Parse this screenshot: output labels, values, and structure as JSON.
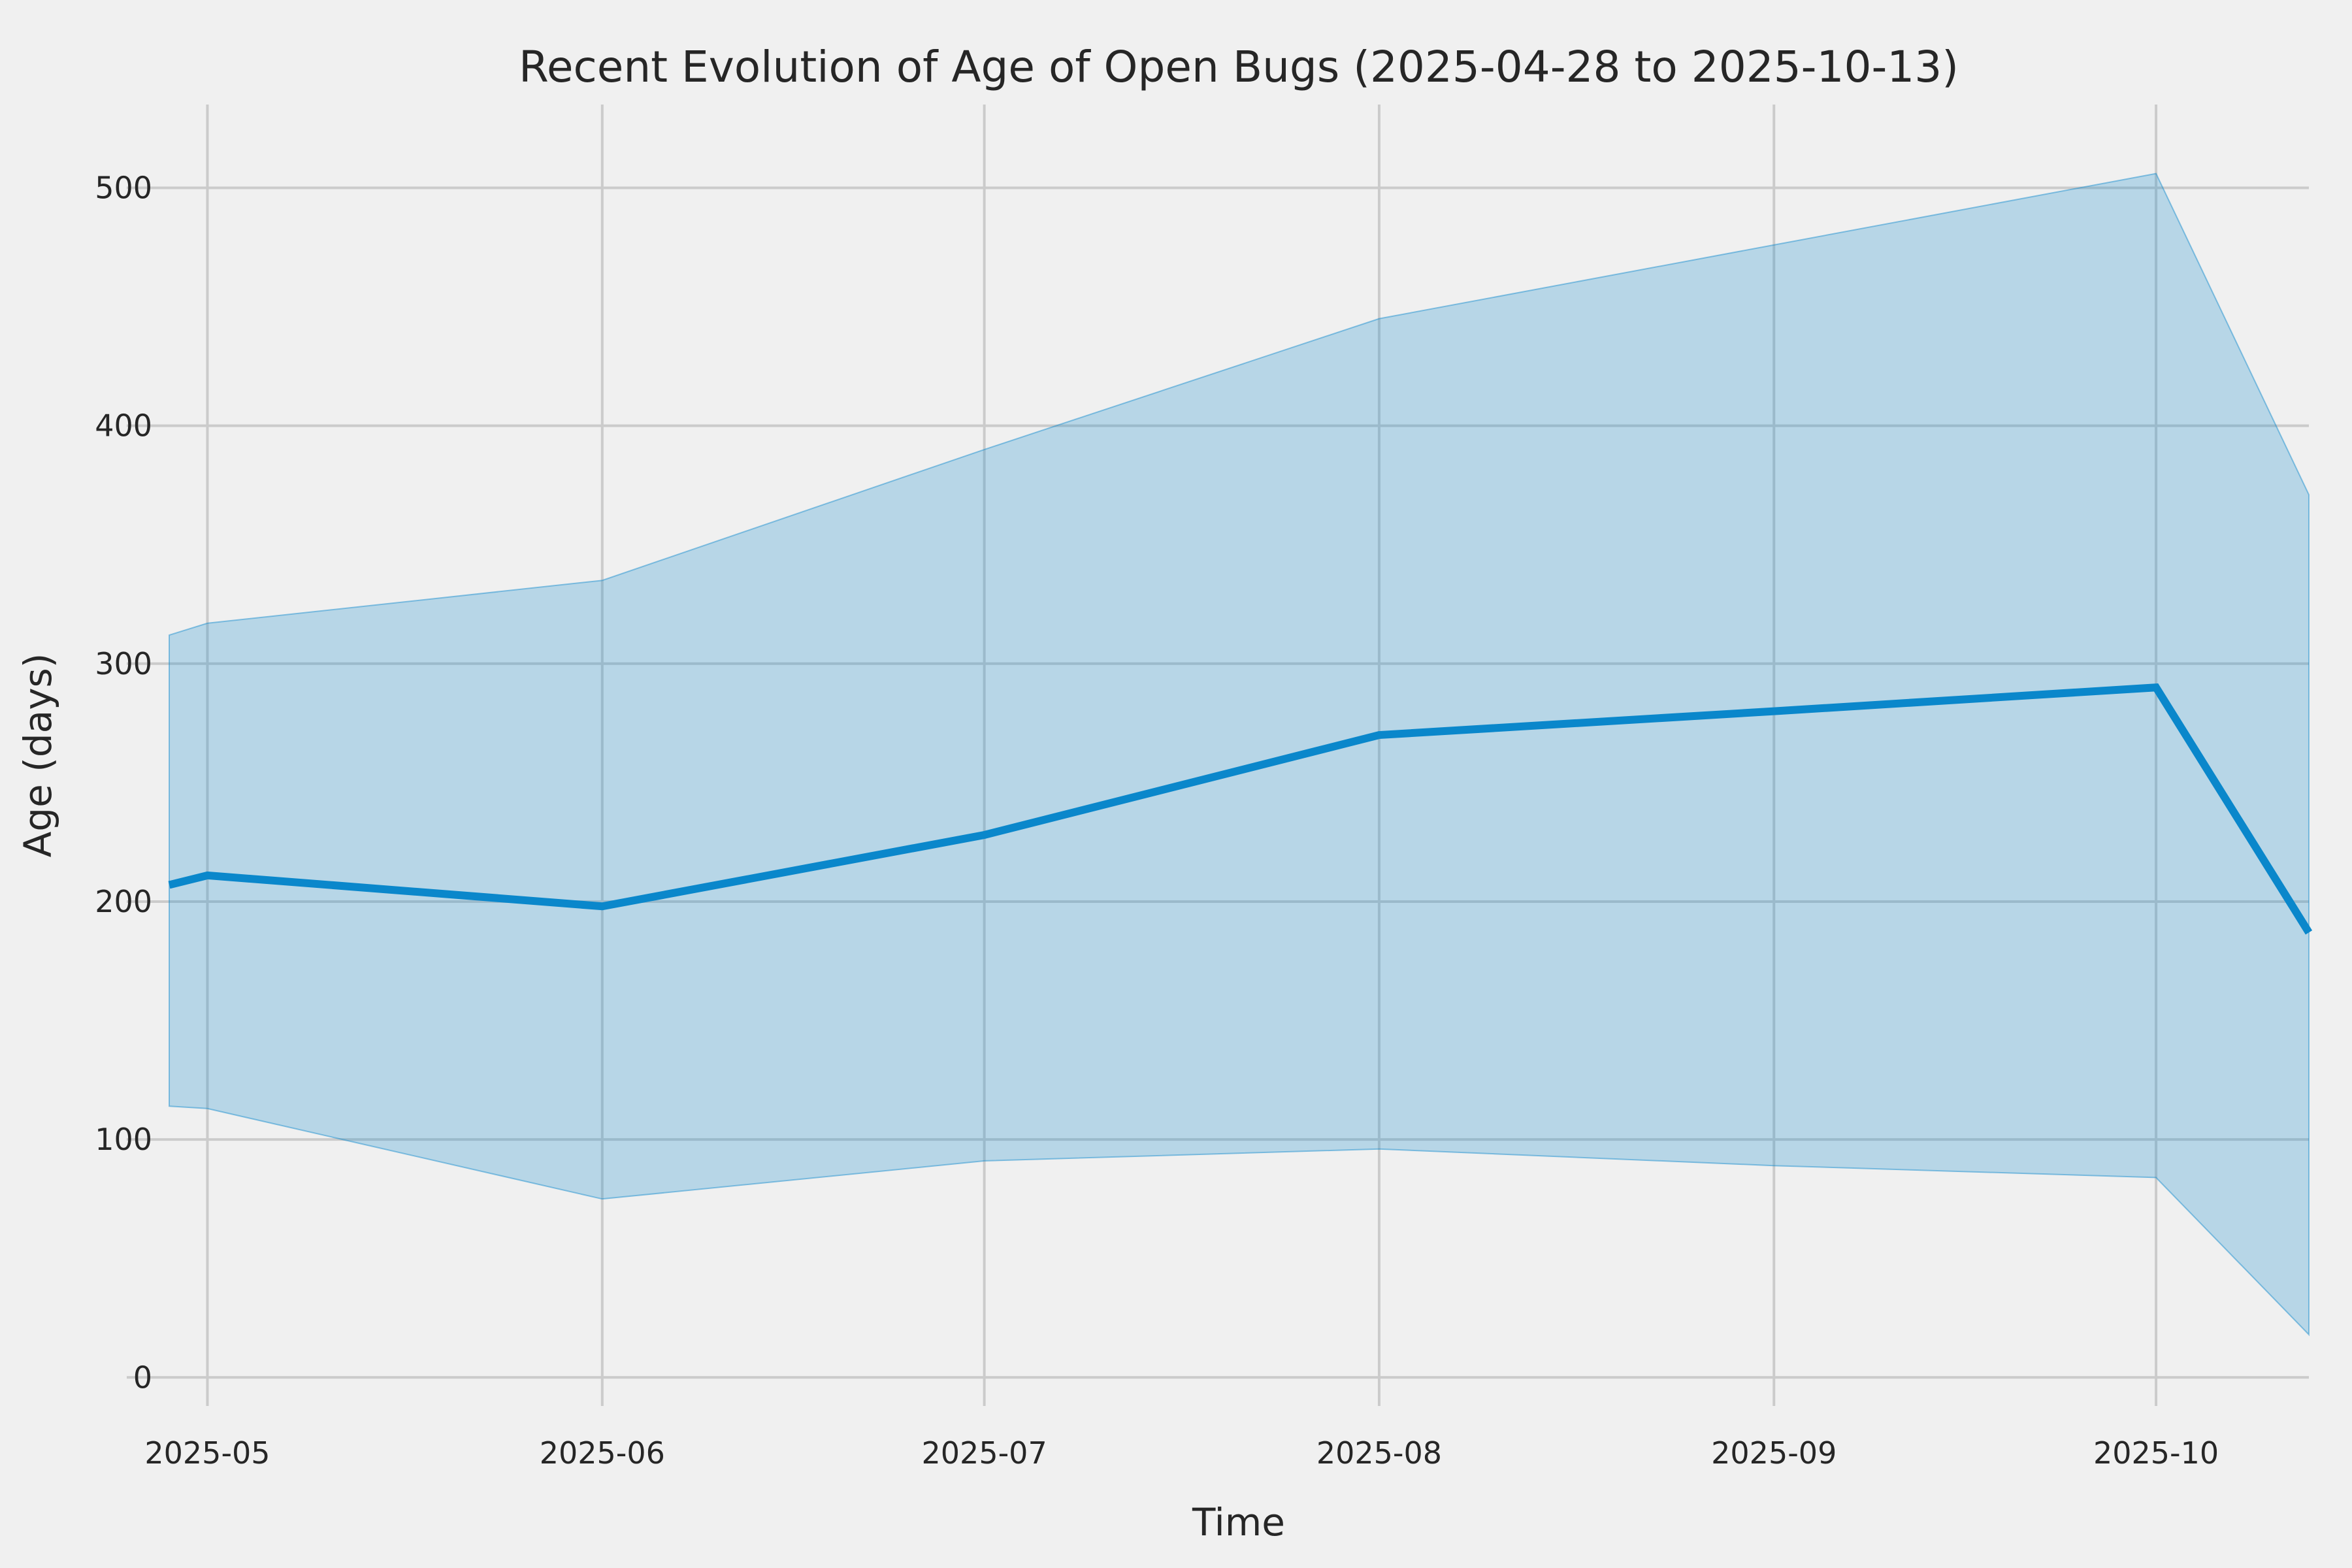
{
  "figure": {
    "title": "Recent Evolution of Age of Open Bugs (2025-04-28 to 2025-10-13)",
    "background_color": "#f0f0f0",
    "grid_color": "#cbcbcb",
    "line_color": "#0a87cb",
    "band_fill_color": "#0a87cb",
    "band_fill_opacity": 0.25,
    "text_color": "#262626"
  },
  "chart_data": {
    "type": "line",
    "title": "Recent Evolution of Age of Open Bugs (2025-04-28 to 2025-10-13)",
    "xlabel": "Time",
    "ylabel": "Age (days)",
    "grid": true,
    "legend_position": "none",
    "x_dates": [
      "2025-04-28",
      "2025-05-01",
      "2025-06-01",
      "2025-07-01",
      "2025-08-01",
      "2025-09-01",
      "2025-10-01",
      "2025-10-13"
    ],
    "x_days": [
      0,
      3,
      34,
      64,
      95,
      126,
      156,
      168
    ],
    "series": [
      {
        "name": "mean-age-line",
        "values": [
          207,
          211,
          198,
          228,
          270,
          280,
          290,
          187
        ]
      },
      {
        "name": "band-upper-max-age",
        "values": [
          312,
          317,
          335,
          390,
          445,
          476,
          506,
          371
        ]
      },
      {
        "name": "band-lower-min-age",
        "values": [
          114,
          113,
          75,
          91,
          96,
          89,
          84,
          18
        ]
      }
    ],
    "band": {
      "upper_series_index": 1,
      "lower_series_index": 2
    },
    "x_ticks": [
      {
        "day": 3,
        "label": "2025-05"
      },
      {
        "day": 34,
        "label": "2025-06"
      },
      {
        "day": 64,
        "label": "2025-07"
      },
      {
        "day": 95,
        "label": "2025-08"
      },
      {
        "day": 126,
        "label": "2025-09"
      },
      {
        "day": 156,
        "label": "2025-10"
      }
    ],
    "y_ticks": [
      0,
      100,
      200,
      300,
      400,
      500
    ],
    "xlim_days": [
      0,
      168
    ],
    "ylim": [
      -12,
      535
    ]
  }
}
